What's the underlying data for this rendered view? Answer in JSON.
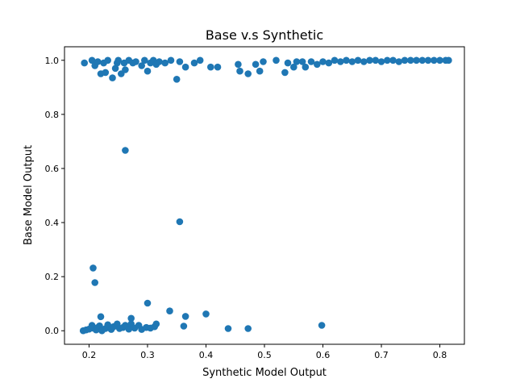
{
  "chart_data": {
    "type": "scatter",
    "title": "Base v.s Synthetic",
    "xlabel": "Synthetic Model Output",
    "ylabel": "Base Model Output",
    "xlim": [
      0.158,
      0.842
    ],
    "ylim": [
      -0.05,
      1.05
    ],
    "xticks": [
      0.2,
      0.3,
      0.4,
      0.5,
      0.6,
      0.7,
      0.8
    ],
    "yticks": [
      0.0,
      0.2,
      0.4,
      0.6,
      0.8,
      1.0
    ],
    "xtick_labels": [
      "0.2",
      "0.3",
      "0.4",
      "0.5",
      "0.6",
      "0.7",
      "0.8"
    ],
    "ytick_labels": [
      "0.0",
      "0.2",
      "0.4",
      "0.6",
      "0.8",
      "1.0"
    ],
    "grid": false,
    "color": "#1f77b4",
    "series": [
      {
        "points": [
          [
            0.192,
            0.99
          ],
          [
            0.205,
            1.0
          ],
          [
            0.21,
            0.98
          ],
          [
            0.215,
            0.995
          ],
          [
            0.22,
            0.95
          ],
          [
            0.225,
            0.99
          ],
          [
            0.228,
            0.955
          ],
          [
            0.232,
            1.0
          ],
          [
            0.24,
            0.935
          ],
          [
            0.245,
            0.97
          ],
          [
            0.248,
            0.99
          ],
          [
            0.25,
            1.0
          ],
          [
            0.255,
            0.95
          ],
          [
            0.26,
            0.99
          ],
          [
            0.262,
            0.965
          ],
          [
            0.268,
            1.0
          ],
          [
            0.275,
            0.99
          ],
          [
            0.28,
            0.995
          ],
          [
            0.29,
            0.98
          ],
          [
            0.295,
            1.0
          ],
          [
            0.3,
            0.96
          ],
          [
            0.305,
            0.99
          ],
          [
            0.31,
            1.0
          ],
          [
            0.315,
            0.985
          ],
          [
            0.32,
            0.995
          ],
          [
            0.33,
            0.99
          ],
          [
            0.34,
            1.0
          ],
          [
            0.35,
            0.93
          ],
          [
            0.355,
            0.995
          ],
          [
            0.365,
            0.975
          ],
          [
            0.38,
            0.99
          ],
          [
            0.39,
            1.0
          ],
          [
            0.408,
            0.975
          ],
          [
            0.42,
            0.975
          ],
          [
            0.455,
            0.985
          ],
          [
            0.458,
            0.96
          ],
          [
            0.472,
            0.95
          ],
          [
            0.485,
            0.985
          ],
          [
            0.492,
            0.96
          ],
          [
            0.498,
            0.995
          ],
          [
            0.52,
            1.0
          ],
          [
            0.535,
            0.955
          ],
          [
            0.54,
            0.99
          ],
          [
            0.55,
            0.975
          ],
          [
            0.555,
            0.995
          ],
          [
            0.565,
            0.995
          ],
          [
            0.57,
            0.975
          ],
          [
            0.58,
            0.995
          ],
          [
            0.59,
            0.985
          ],
          [
            0.6,
            0.995
          ],
          [
            0.61,
            0.99
          ],
          [
            0.62,
            1.0
          ],
          [
            0.63,
            0.995
          ],
          [
            0.64,
            1.0
          ],
          [
            0.65,
            0.995
          ],
          [
            0.66,
            1.0
          ],
          [
            0.67,
            0.995
          ],
          [
            0.68,
            1.0
          ],
          [
            0.69,
            1.0
          ],
          [
            0.7,
            0.995
          ],
          [
            0.71,
            1.0
          ],
          [
            0.72,
            1.0
          ],
          [
            0.73,
            0.995
          ],
          [
            0.74,
            1.0
          ],
          [
            0.75,
            1.0
          ],
          [
            0.76,
            1.0
          ],
          [
            0.77,
            1.0
          ],
          [
            0.78,
            1.0
          ],
          [
            0.79,
            1.0
          ],
          [
            0.8,
            1.0
          ],
          [
            0.81,
            1.0
          ],
          [
            0.815,
            1.0
          ],
          [
            0.262,
            0.667
          ],
          [
            0.355,
            0.403
          ],
          [
            0.207,
            0.232
          ],
          [
            0.21,
            0.178
          ],
          [
            0.3,
            0.102
          ],
          [
            0.338,
            0.073
          ],
          [
            0.4,
            0.062
          ],
          [
            0.22,
            0.052
          ],
          [
            0.365,
            0.053
          ],
          [
            0.272,
            0.046
          ],
          [
            0.598,
            0.02
          ],
          [
            0.362,
            0.017
          ],
          [
            0.438,
            0.008
          ],
          [
            0.472,
            0.008
          ],
          [
            0.19,
            0.0
          ],
          [
            0.195,
            0.003
          ],
          [
            0.2,
            0.006
          ],
          [
            0.205,
            0.02
          ],
          [
            0.207,
            0.01
          ],
          [
            0.212,
            0.003
          ],
          [
            0.215,
            0.012
          ],
          [
            0.218,
            0.018
          ],
          [
            0.222,
            0.0
          ],
          [
            0.228,
            0.008
          ],
          [
            0.232,
            0.022
          ],
          [
            0.238,
            0.005
          ],
          [
            0.242,
            0.015
          ],
          [
            0.248,
            0.025
          ],
          [
            0.252,
            0.008
          ],
          [
            0.258,
            0.012
          ],
          [
            0.262,
            0.02
          ],
          [
            0.268,
            0.006
          ],
          [
            0.272,
            0.025
          ],
          [
            0.278,
            0.01
          ],
          [
            0.285,
            0.02
          ],
          [
            0.29,
            0.005
          ],
          [
            0.298,
            0.012
          ],
          [
            0.305,
            0.01
          ],
          [
            0.312,
            0.015
          ],
          [
            0.315,
            0.025
          ]
        ]
      }
    ]
  }
}
